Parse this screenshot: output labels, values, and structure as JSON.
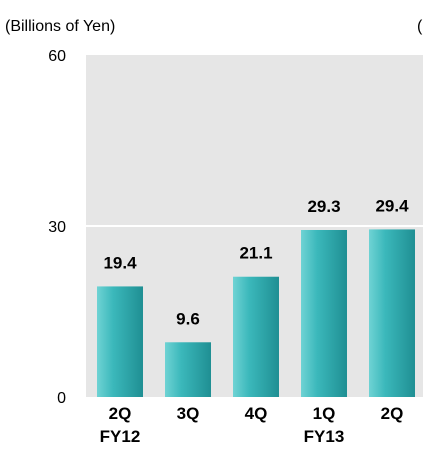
{
  "chart_data": {
    "type": "bar",
    "ylabel": "(Billions of Yen)",
    "edge_text": "(",
    "categories": [
      "2Q",
      "3Q",
      "4Q",
      "1Q",
      "2Q"
    ],
    "category_groups": [
      "FY12",
      "",
      "",
      "FY13",
      ""
    ],
    "values": [
      19.4,
      9.6,
      21.1,
      29.3,
      29.4
    ],
    "value_labels": [
      "19.4",
      "9.6",
      "21.1",
      "29.3",
      "29.4"
    ],
    "ylim": [
      0,
      60
    ],
    "yticks": [
      "0",
      "30",
      "60"
    ],
    "grid": true,
    "legend": "none",
    "colors": {
      "bar": "#3bb8bb",
      "bar_dark": "#1f8f93",
      "bar_light": "#6fd3d4",
      "plot_bg": "#e6e6e6",
      "gridline": "#ffffff"
    }
  }
}
